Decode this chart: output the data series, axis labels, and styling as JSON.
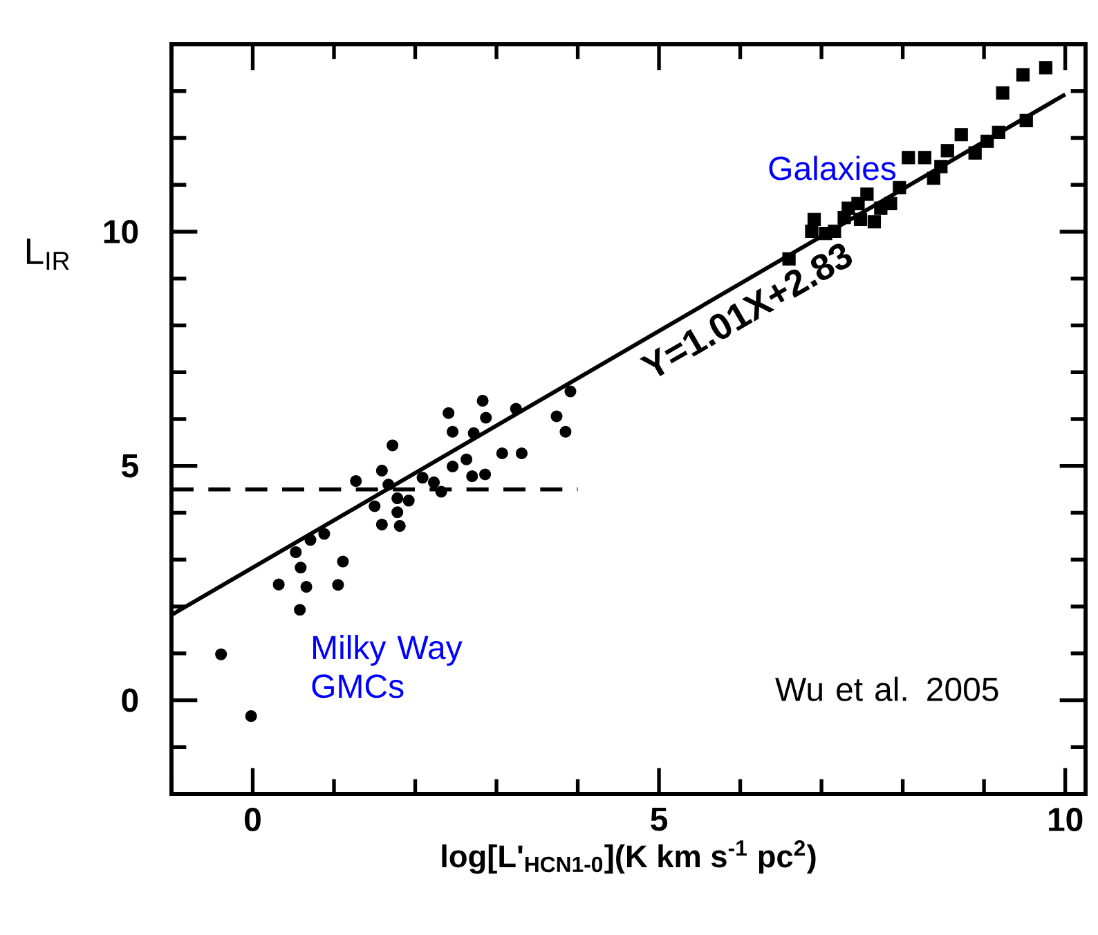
{
  "chart_data": {
    "type": "scatter",
    "xlabel": "log[L'$_{HCN1-0}$](K km s$^{-1}$ pc$^{2}$)",
    "ylabel": "L$_{IR}$",
    "xlim": [
      -1,
      10.25
    ],
    "ylim": [
      -2,
      14
    ],
    "xticks": [
      {
        "value": -1,
        "label": null
      },
      0,
      {
        "value": 1,
        "label": null
      },
      {
        "value": 2,
        "label": null
      },
      {
        "value": 3,
        "label": null
      },
      {
        "value": 4,
        "label": null
      },
      5,
      {
        "value": 6,
        "label": null
      },
      {
        "value": 7,
        "label": null
      },
      {
        "value": 8,
        "label": null
      },
      {
        "value": 9,
        "label": null
      },
      10
    ],
    "yticks": [
      {
        "value": -1,
        "label": null
      },
      0,
      {
        "value": 1,
        "label": null
      },
      {
        "value": 2,
        "label": null
      },
      {
        "value": 3,
        "label": null
      },
      {
        "value": 4,
        "label": null
      },
      5,
      {
        "value": 6,
        "label": null
      },
      {
        "value": 7,
        "label": null
      },
      {
        "value": 8,
        "label": null
      },
      {
        "value": 9,
        "label": null
      },
      10,
      {
        "value": 11,
        "label": null
      },
      {
        "value": 12,
        "label": null
      },
      {
        "value": 13,
        "label": null
      }
    ],
    "grid": false,
    "legend": false,
    "series": [
      {
        "type": "scatter",
        "marker": "circle",
        "color": "#000000",
        "x": [
          -0.39,
          -0.02,
          0.32,
          0.58,
          0.66,
          0.59,
          0.53,
          1.05,
          1.11,
          0.71,
          0.88,
          1.27,
          1.5,
          1.59,
          1.59,
          1.72,
          1.67,
          1.78,
          1.81,
          1.78,
          1.92,
          2.09,
          2.23,
          2.32,
          2.46,
          2.41,
          2.46,
          2.63,
          2.72,
          2.7,
          2.86,
          2.83,
          2.87,
          3.07,
          3.31,
          3.24,
          3.74,
          3.85,
          3.91
        ],
        "values": [
          0.98,
          -0.34,
          2.47,
          1.93,
          2.42,
          2.83,
          3.16,
          2.46,
          2.96,
          3.42,
          3.55,
          4.68,
          4.14,
          3.75,
          4.9,
          5.44,
          4.6,
          4.31,
          3.72,
          4.01,
          4.26,
          4.75,
          4.65,
          4.45,
          4.99,
          6.13,
          5.73,
          5.14,
          5.7,
          4.78,
          4.82,
          6.39,
          6.03,
          5.27,
          5.27,
          6.22,
          6.06,
          5.73,
          6.59
        ]
      },
      {
        "type": "scatter",
        "marker": "square",
        "color": "#000000",
        "x": [
          9.23,
          9.48,
          9.76,
          9.52,
          9.18,
          9.04,
          8.89,
          8.72,
          8.55,
          8.47,
          8.38,
          8.27,
          8.07,
          7.96,
          7.85,
          7.73,
          7.56,
          7.45,
          7.33,
          7.28,
          7.48,
          7.65,
          7.16,
          6.91,
          6.88,
          7.05,
          6.6
        ],
        "values": [
          12.96,
          13.35,
          13.5,
          12.37,
          12.12,
          11.93,
          11.68,
          12.07,
          11.73,
          11.39,
          11.14,
          11.58,
          11.58,
          10.94,
          10.6,
          10.5,
          10.8,
          10.6,
          10.5,
          10.3,
          10.26,
          10.21,
          10.01,
          10.26,
          10.01,
          9.96,
          9.42
        ]
      },
      {
        "type": "line",
        "name": "Y=1.01X+2.83",
        "marker": "none",
        "line_style": "solid",
        "color": "#000000",
        "x": [
          -1,
          10
        ],
        "values": [
          1.82,
          12.93
        ]
      },
      {
        "type": "line",
        "marker": "none",
        "line_style": "dashed",
        "color": "#000000",
        "x": [
          -1,
          4
        ],
        "values": [
          4.5,
          4.5
        ]
      }
    ],
    "annotations": [
      "Galaxies",
      "Milky Way GMCs",
      "Wu et al. 2005"
    ]
  }
}
